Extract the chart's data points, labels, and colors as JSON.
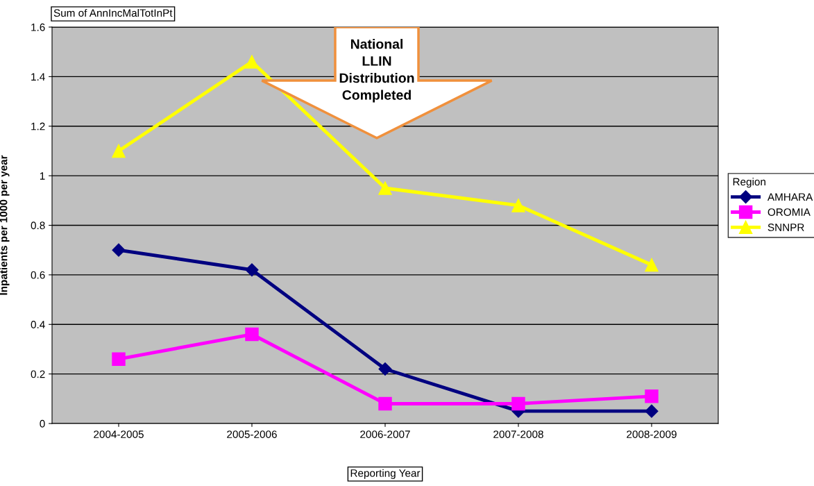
{
  "chart_data": {
    "type": "line",
    "xlabel": "Reporting Year",
    "ylabel": "Inpatients per 1000 per year",
    "legend_title": "Region",
    "categories": [
      "2004-2005",
      "2005-2006",
      "2006-2007",
      "2007-2008",
      "2008-2009"
    ],
    "series": [
      {
        "name": "AMHARA",
        "color": "#000080",
        "marker": "diamond",
        "values": [
          0.7,
          0.62,
          0.22,
          0.05,
          0.05
        ]
      },
      {
        "name": "OROMIA",
        "color": "#ff00ff",
        "marker": "square",
        "values": [
          0.26,
          0.36,
          0.08,
          0.08,
          0.11
        ]
      },
      {
        "name": "SNNPR",
        "color": "#ffff00",
        "marker": "triangle",
        "values": [
          1.1,
          1.46,
          0.95,
          0.88,
          0.64
        ]
      }
    ],
    "ylim": [
      0,
      1.6
    ],
    "yticks": [
      0,
      0.2,
      0.4,
      0.6,
      0.8,
      1,
      1.2,
      1.4,
      1.6
    ],
    "grid": "y",
    "legend": "right",
    "annotations": [
      "Sum of AnnIncMalTotInPt",
      "National\nLLIN\nDistribution\nCompleted"
    ]
  }
}
